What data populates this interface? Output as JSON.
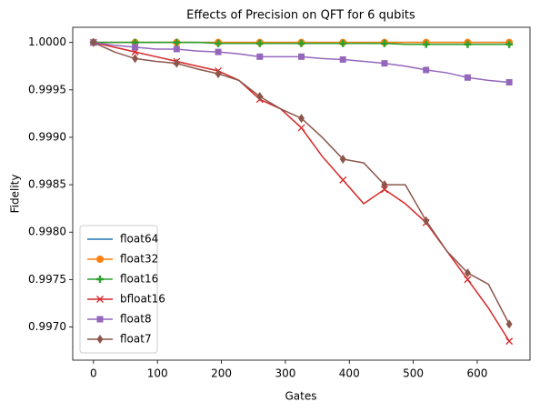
{
  "chart_data": {
    "type": "line",
    "title": "Effects of Precision on QFT for 6 qubits",
    "xlabel": "Gates",
    "ylabel": "Fidelity",
    "x": [
      0,
      32.5,
      65,
      97.5,
      130,
      162.5,
      195,
      227.5,
      260,
      292.5,
      325,
      357.5,
      390,
      422.5,
      455,
      487.5,
      520,
      552.5,
      585,
      617.5,
      650
    ],
    "series": [
      {
        "name": "float64",
        "color": "#1f77b4",
        "marker": "none",
        "values": [
          1.0,
          1.0,
          1.0,
          1.0,
          1.0,
          1.0,
          1.0,
          1.0,
          1.0,
          1.0,
          1.0,
          1.0,
          1.0,
          1.0,
          1.0,
          1.0,
          1.0,
          1.0,
          1.0,
          1.0,
          1.0
        ]
      },
      {
        "name": "float32",
        "color": "#ff7f0e",
        "marker": "circle",
        "values": [
          1.0,
          1.0,
          1.0,
          1.0,
          1.0,
          1.0,
          1.0,
          1.0,
          1.0,
          1.0,
          1.0,
          1.0,
          1.0,
          1.0,
          1.0,
          1.0,
          1.0,
          1.0,
          1.0,
          1.0,
          1.0
        ]
      },
      {
        "name": "float16",
        "color": "#2ca02c",
        "marker": "plus",
        "values": [
          1.0,
          1.0,
          1.0,
          1.0,
          1.0,
          1.0,
          0.99999,
          0.99999,
          0.99999,
          0.99999,
          0.99999,
          0.99999,
          0.99999,
          0.99999,
          0.99999,
          0.99998,
          0.99998,
          0.99998,
          0.99998,
          0.99998,
          0.99998
        ]
      },
      {
        "name": "bfloat16",
        "color": "#d62728",
        "marker": "x",
        "values": [
          1.0,
          0.99995,
          0.9999,
          0.99985,
          0.9998,
          0.99975,
          0.9997,
          0.9996,
          0.9994,
          0.9993,
          0.9991,
          0.9988,
          0.99855,
          0.9983,
          0.99845,
          0.9983,
          0.9981,
          0.9978,
          0.9975,
          0.9972,
          0.99685
        ]
      },
      {
        "name": "float8",
        "color": "#9467bd",
        "marker": "square",
        "values": [
          1.0,
          0.99997,
          0.99995,
          0.99993,
          0.99993,
          0.99991,
          0.9999,
          0.99988,
          0.99985,
          0.99985,
          0.99985,
          0.99983,
          0.99982,
          0.9998,
          0.99978,
          0.99975,
          0.99971,
          0.99968,
          0.99963,
          0.9996,
          0.99958
        ]
      },
      {
        "name": "float7",
        "color": "#8c564b",
        "marker": "diamond",
        "values": [
          1.0,
          0.9999,
          0.99983,
          0.9998,
          0.99978,
          0.99972,
          0.99967,
          0.9996,
          0.99943,
          0.9993,
          0.9992,
          0.999,
          0.99877,
          0.99873,
          0.9985,
          0.9985,
          0.99812,
          0.9978,
          0.99757,
          0.99745,
          0.99703
        ]
      }
    ],
    "xlim": [
      -32.5,
      682.5
    ],
    "ylim": [
      0.99665,
      1.00016
    ],
    "xticks": [
      0,
      100,
      200,
      300,
      400,
      500,
      600
    ],
    "yticks": [
      {
        "value": 0.997,
        "label": "0.9970"
      },
      {
        "value": 0.9975,
        "label": "0.9975"
      },
      {
        "value": 0.998,
        "label": "0.9980"
      },
      {
        "value": 0.9985,
        "label": "0.9985"
      },
      {
        "value": 0.999,
        "label": "0.9990"
      },
      {
        "value": 0.9995,
        "label": "0.9995"
      },
      {
        "value": 1.0,
        "label": "1.0000"
      }
    ],
    "legend": "lower left",
    "grid": false
  }
}
